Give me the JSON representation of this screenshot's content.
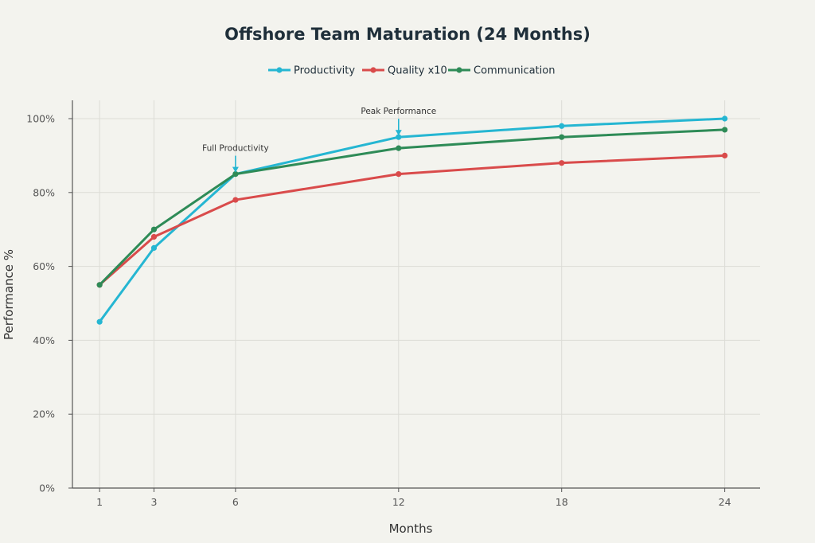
{
  "chart_data": {
    "type": "line",
    "title": "Offshore Team Maturation (24 Months)",
    "xlabel": "Months",
    "ylabel": "Performance %",
    "x": [
      1,
      3,
      6,
      12,
      18,
      24
    ],
    "xticks": [
      "1",
      "3",
      "6",
      "12",
      "18",
      "24"
    ],
    "xlim": [
      0,
      25.3
    ],
    "ylim": [
      0,
      100
    ],
    "yticks": [
      0,
      20,
      40,
      60,
      80,
      100
    ],
    "ytick_labels": [
      "0%",
      "20%",
      "40%",
      "60%",
      "80%",
      "100%"
    ],
    "grid": true,
    "legend_position": "top-center",
    "series": [
      {
        "name": "Productivity",
        "color": "#25b6d2",
        "values": [
          45,
          65,
          85,
          95,
          98,
          100
        ]
      },
      {
        "name": "Quality x10",
        "color": "#d94b4b",
        "values": [
          55,
          68,
          78,
          85,
          88,
          90
        ]
      },
      {
        "name": "Communication",
        "color": "#2e8b57",
        "values": [
          55,
          70,
          85,
          92,
          95,
          97
        ]
      }
    ],
    "annotations": [
      {
        "text": "Full Productivity",
        "x": 6,
        "y": 85,
        "color": "#25b6d2"
      },
      {
        "text": "Peak Performance",
        "x": 12,
        "y": 95,
        "color": "#25b6d2"
      }
    ]
  }
}
